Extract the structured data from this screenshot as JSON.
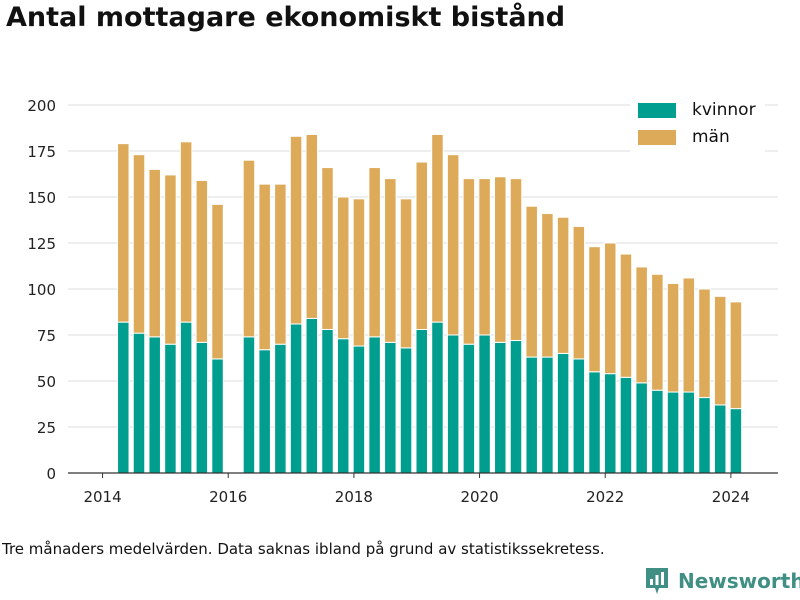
{
  "title": "Antal mottagare ekonomiskt bistånd",
  "footnote": "Tre månaders medelvärden. Data saknas ibland på grund av statistikssekretess.",
  "brand": {
    "name": "Newsworthy",
    "icon": "newsworthy-logo-icon",
    "color": "#3f8f84"
  },
  "colors": {
    "kvinnor": "#009e8f",
    "man": "#dcaa59",
    "grid": "#dddddd",
    "axis": "#333333"
  },
  "legend": [
    {
      "label": "kvinnor",
      "color": "#009e8f"
    },
    {
      "label": "män",
      "color": "#dcaa59"
    }
  ],
  "chart_data": {
    "type": "bar",
    "stacked": true,
    "title": "Antal mottagare ekonomiskt bistånd",
    "xlabel": "",
    "ylabel": "",
    "ylim": [
      0,
      200
    ],
    "yticks": [
      0,
      25,
      50,
      75,
      100,
      125,
      150,
      175,
      200
    ],
    "xticks": [
      2014,
      2016,
      2018,
      2020,
      2022,
      2024
    ],
    "xlim": [
      2013.45,
      2024.75
    ],
    "grid": true,
    "legend_position": "top-right",
    "x": [
      2014.33,
      2014.58,
      2014.83,
      2015.08,
      2015.33,
      2015.58,
      2015.83,
      2016.33,
      2016.58,
      2016.83,
      2017.08,
      2017.33,
      2017.58,
      2017.83,
      2018.08,
      2018.33,
      2018.58,
      2018.83,
      2019.08,
      2019.33,
      2019.58,
      2019.83,
      2020.08,
      2020.33,
      2020.58,
      2020.83,
      2021.08,
      2021.33,
      2021.58,
      2021.83,
      2022.08,
      2022.33,
      2022.58,
      2022.83,
      2023.08,
      2023.33,
      2023.58,
      2023.83,
      2024.08
    ],
    "series": [
      {
        "name": "kvinnor",
        "values": [
          82,
          76,
          74,
          70,
          82,
          71,
          62,
          74,
          67,
          70,
          81,
          84,
          78,
          73,
          69,
          74,
          71,
          68,
          78,
          82,
          75,
          70,
          75,
          71,
          72,
          63,
          63,
          65,
          62,
          55,
          54,
          52,
          49,
          45,
          44,
          44,
          41,
          37,
          35
        ]
      },
      {
        "name": "män",
        "values": [
          97,
          97,
          91,
          92,
          98,
          88,
          84,
          96,
          90,
          87,
          102,
          100,
          88,
          77,
          80,
          92,
          89,
          81,
          91,
          102,
          98,
          90,
          85,
          90,
          88,
          82,
          78,
          74,
          72,
          68,
          71,
          67,
          63,
          63,
          59,
          62,
          59,
          59,
          58
        ]
      }
    ]
  }
}
